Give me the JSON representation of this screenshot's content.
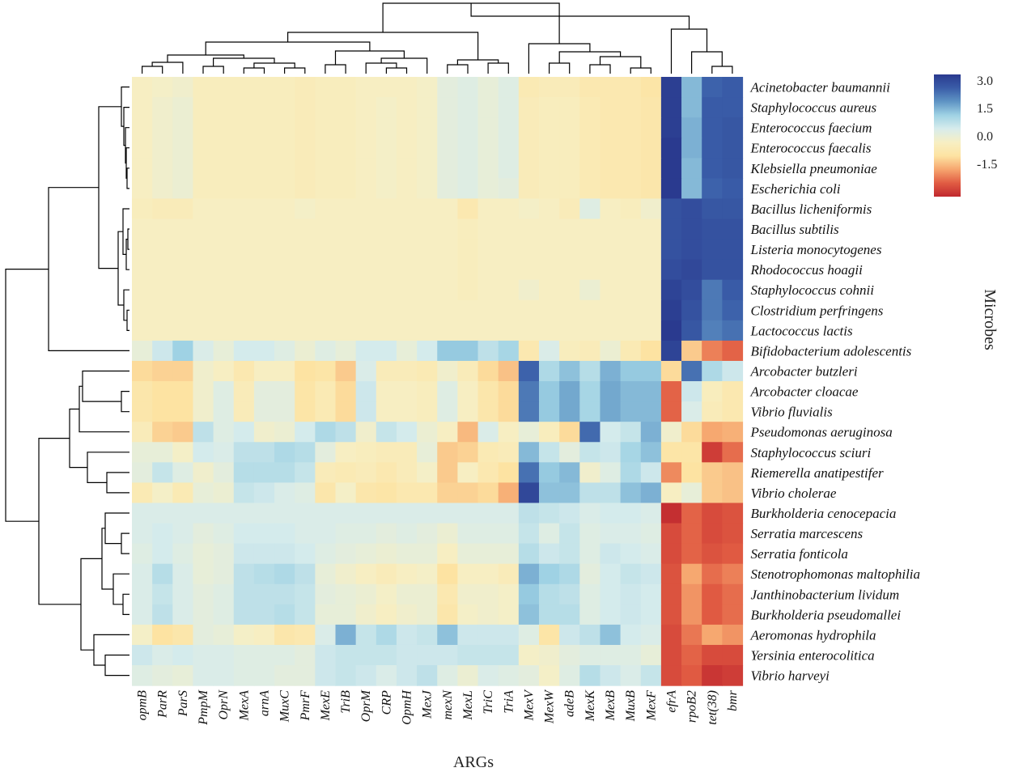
{
  "chart_data": {
    "type": "heatmap",
    "title": "",
    "xlabel": "ARGs",
    "ylabel": "Microbes",
    "columns": [
      "opmB",
      "ParR",
      "ParS",
      "PmpM",
      "OprN",
      "MexA",
      "arnA",
      "MuxC",
      "PmrF",
      "MexE",
      "TriB",
      "OprM",
      "CRP",
      "OpmH",
      "MexJ",
      "mexN",
      "MexL",
      "TriC",
      "TriA",
      "MexV",
      "MexW",
      "adeB",
      "MexK",
      "MexB",
      "MuxB",
      "MexF",
      "efrA",
      "rpoB2",
      "tet(38)",
      "bmr"
    ],
    "rows": [
      "Acinetobacter baumannii",
      "Staphylococcus aureus",
      "Enterococcus faecium",
      "Enterococcus faecalis",
      "Klebsiella pneumoniae",
      "Escherichia coli",
      "Bacillus licheniformis",
      "Bacillus subtilis",
      "Listeria monocytogenes",
      "Rhodococcus hoagii",
      "Staphylococcus cohnii",
      "Clostridium perfringens",
      "Lactococcus lactis",
      "Bifidobacterium adolescentis",
      "Arcobacter butzleri",
      "Arcobacter cloacae",
      "Vibrio fluvialis",
      "Pseudomonas aeruginosa",
      "Staphylococcus sciuri",
      "Riemerella anatipestifer",
      "Vibrio cholerae",
      "Burkholderia cenocepacia",
      "Serratia marcescens",
      "Serratia fonticola",
      "Stenotrophomonas maltophilia",
      "Janthinobacterium lividum",
      "Burkholderia pseudomallei",
      "Aeromonas hydrophila",
      "Yersinia enterocolitica",
      "Vibrio harveyi"
    ],
    "values": [
      [
        -0.4,
        -0.3,
        -0.2,
        -0.5,
        -0.5,
        -0.5,
        -0.5,
        -0.5,
        -0.6,
        -0.5,
        -0.5,
        -0.4,
        -0.4,
        -0.4,
        -0.3,
        0.1,
        0.2,
        0.0,
        0.2,
        -0.7,
        -0.6,
        -0.6,
        -0.8,
        -0.8,
        -0.8,
        -1.0,
        3.2,
        1.4,
        2.5,
        2.6
      ],
      [
        -0.4,
        -0.2,
        -0.1,
        -0.5,
        -0.5,
        -0.5,
        -0.5,
        -0.5,
        -0.6,
        -0.5,
        -0.5,
        -0.4,
        -0.3,
        -0.4,
        -0.3,
        0.1,
        0.2,
        0.0,
        0.2,
        -0.6,
        -0.5,
        -0.5,
        -0.7,
        -0.8,
        -0.8,
        -0.9,
        3.2,
        1.4,
        2.6,
        2.6
      ],
      [
        -0.4,
        -0.2,
        -0.1,
        -0.5,
        -0.5,
        -0.5,
        -0.5,
        -0.5,
        -0.6,
        -0.5,
        -0.5,
        -0.4,
        -0.3,
        -0.4,
        -0.3,
        0.1,
        0.2,
        0.0,
        0.2,
        -0.6,
        -0.5,
        -0.5,
        -0.7,
        -0.8,
        -0.8,
        -0.9,
        3.2,
        1.5,
        2.6,
        2.7
      ],
      [
        -0.4,
        -0.2,
        -0.1,
        -0.5,
        -0.5,
        -0.5,
        -0.5,
        -0.5,
        -0.6,
        -0.5,
        -0.5,
        -0.4,
        -0.3,
        -0.4,
        -0.3,
        0.1,
        0.2,
        0.0,
        0.2,
        -0.6,
        -0.5,
        -0.5,
        -0.7,
        -0.8,
        -0.8,
        -0.9,
        3.3,
        1.5,
        2.6,
        2.7
      ],
      [
        -0.4,
        -0.2,
        -0.1,
        -0.5,
        -0.5,
        -0.5,
        -0.5,
        -0.5,
        -0.6,
        -0.5,
        -0.5,
        -0.4,
        -0.3,
        -0.4,
        -0.3,
        0.1,
        0.2,
        0.0,
        0.2,
        -0.6,
        -0.5,
        -0.5,
        -0.7,
        -0.8,
        -0.8,
        -0.9,
        3.3,
        1.4,
        2.6,
        2.7
      ],
      [
        -0.4,
        -0.2,
        -0.1,
        -0.5,
        -0.5,
        -0.5,
        -0.5,
        -0.5,
        -0.6,
        -0.5,
        -0.5,
        -0.4,
        -0.3,
        -0.4,
        -0.3,
        0.1,
        0.2,
        0.0,
        0.1,
        -0.6,
        -0.5,
        -0.5,
        -0.7,
        -0.8,
        -0.8,
        -0.9,
        3.3,
        1.4,
        2.5,
        2.6
      ],
      [
        -0.5,
        -0.6,
        -0.6,
        -0.4,
        -0.4,
        -0.4,
        -0.4,
        -0.4,
        -0.3,
        -0.4,
        -0.4,
        -0.4,
        -0.4,
        -0.4,
        -0.4,
        -0.4,
        -0.8,
        -0.4,
        -0.4,
        -0.3,
        -0.4,
        -0.6,
        0.2,
        -0.4,
        -0.5,
        -0.2,
        2.8,
        2.9,
        2.7,
        2.7
      ],
      [
        -0.4,
        -0.4,
        -0.4,
        -0.4,
        -0.4,
        -0.4,
        -0.4,
        -0.4,
        -0.4,
        -0.4,
        -0.4,
        -0.4,
        -0.4,
        -0.4,
        -0.4,
        -0.4,
        -0.5,
        -0.4,
        -0.4,
        -0.4,
        -0.4,
        -0.4,
        -0.4,
        -0.4,
        -0.4,
        -0.4,
        2.8,
        2.9,
        2.8,
        2.8
      ],
      [
        -0.4,
        -0.4,
        -0.4,
        -0.4,
        -0.4,
        -0.4,
        -0.4,
        -0.4,
        -0.4,
        -0.4,
        -0.4,
        -0.4,
        -0.4,
        -0.4,
        -0.4,
        -0.4,
        -0.5,
        -0.4,
        -0.4,
        -0.4,
        -0.4,
        -0.4,
        -0.4,
        -0.4,
        -0.4,
        -0.4,
        2.8,
        2.9,
        2.8,
        2.8
      ],
      [
        -0.4,
        -0.4,
        -0.4,
        -0.4,
        -0.4,
        -0.4,
        -0.4,
        -0.4,
        -0.4,
        -0.4,
        -0.4,
        -0.4,
        -0.4,
        -0.4,
        -0.4,
        -0.4,
        -0.5,
        -0.4,
        -0.4,
        -0.4,
        -0.4,
        -0.4,
        -0.4,
        -0.4,
        -0.4,
        -0.4,
        2.9,
        3.0,
        2.8,
        2.8
      ],
      [
        -0.4,
        -0.4,
        -0.4,
        -0.4,
        -0.4,
        -0.4,
        -0.4,
        -0.4,
        -0.4,
        -0.4,
        -0.4,
        -0.4,
        -0.4,
        -0.4,
        -0.4,
        -0.4,
        -0.5,
        -0.4,
        -0.4,
        -0.2,
        -0.4,
        -0.4,
        -0.1,
        -0.4,
        -0.4,
        -0.4,
        3.1,
        2.9,
        2.2,
        2.6
      ],
      [
        -0.4,
        -0.4,
        -0.4,
        -0.4,
        -0.4,
        -0.4,
        -0.4,
        -0.4,
        -0.4,
        -0.4,
        -0.4,
        -0.4,
        -0.4,
        -0.4,
        -0.4,
        -0.4,
        -0.4,
        -0.4,
        -0.4,
        -0.4,
        -0.4,
        -0.4,
        -0.4,
        -0.4,
        -0.4,
        -0.4,
        3.2,
        2.8,
        2.2,
        2.5
      ],
      [
        -0.4,
        -0.4,
        -0.4,
        -0.4,
        -0.4,
        -0.4,
        -0.4,
        -0.4,
        -0.4,
        -0.4,
        -0.4,
        -0.4,
        -0.4,
        -0.4,
        -0.4,
        -0.4,
        -0.4,
        -0.4,
        -0.4,
        -0.4,
        -0.4,
        -0.4,
        -0.4,
        -0.4,
        -0.4,
        -0.4,
        3.3,
        2.7,
        2.1,
        2.3
      ],
      [
        0.0,
        0.5,
        1.1,
        0.3,
        0.0,
        0.4,
        0.4,
        0.2,
        -0.1,
        0.2,
        0.0,
        0.4,
        0.4,
        0.0,
        0.4,
        1.2,
        1.2,
        0.7,
        1.0,
        -0.8,
        0.3,
        -0.5,
        -0.6,
        -0.1,
        -0.7,
        -1.1,
        3.1,
        -1.4,
        -2.2,
        -2.5
      ],
      [
        -1.2,
        -1.3,
        -1.3,
        -0.2,
        -0.4,
        -0.8,
        -0.4,
        -0.4,
        -1.1,
        -1.0,
        -1.4,
        0.3,
        -0.6,
        -0.6,
        -0.7,
        -0.2,
        -0.6,
        -1.2,
        -1.5,
        2.5,
        0.9,
        1.3,
        0.8,
        1.5,
        1.2,
        1.2,
        -1.2,
        2.3,
        0.9,
        0.5
      ],
      [
        -0.9,
        -1.1,
        -1.1,
        -0.2,
        0.2,
        -0.6,
        0.1,
        0.1,
        -1.0,
        -0.7,
        -1.2,
        0.5,
        -0.4,
        -0.4,
        -0.5,
        0.2,
        -0.4,
        -0.9,
        -1.2,
        2.2,
        1.2,
        1.6,
        1.0,
        1.6,
        1.4,
        1.4,
        -2.5,
        0.5,
        -0.5,
        -0.8
      ],
      [
        -0.9,
        -1.1,
        -1.1,
        -0.2,
        0.2,
        -0.6,
        0.1,
        0.1,
        -1.0,
        -0.7,
        -1.2,
        0.5,
        -0.4,
        -0.4,
        -0.5,
        0.2,
        -0.4,
        -0.9,
        -1.2,
        2.2,
        1.2,
        1.6,
        1.0,
        1.6,
        1.4,
        1.4,
        -2.5,
        0.3,
        -0.6,
        -0.8
      ],
      [
        -0.6,
        -1.3,
        -1.4,
        0.7,
        0.2,
        0.4,
        -0.2,
        -0.1,
        0.4,
        0.9,
        0.7,
        -0.2,
        0.6,
        0.4,
        -0.1,
        -0.4,
        -1.6,
        0.3,
        -0.4,
        0.0,
        -0.5,
        -1.2,
        2.4,
        0.4,
        0.6,
        1.5,
        -0.2,
        -1.2,
        -1.8,
        -1.7
      ],
      [
        0.0,
        0.0,
        -0.3,
        0.4,
        0.3,
        0.7,
        0.7,
        0.9,
        0.8,
        0.1,
        -0.4,
        -0.5,
        -0.6,
        -0.6,
        0.0,
        -1.4,
        -1.3,
        -0.7,
        -0.6,
        1.4,
        0.6,
        0.1,
        0.6,
        0.5,
        1.0,
        1.3,
        -1.0,
        -1.0,
        -3.0,
        -2.4
      ],
      [
        0.1,
        0.6,
        0.2,
        -0.2,
        0.1,
        0.8,
        0.8,
        0.8,
        0.6,
        -0.6,
        -0.7,
        -0.6,
        -0.8,
        -0.6,
        -0.3,
        -1.4,
        -0.4,
        -0.8,
        -1.1,
        2.3,
        1.2,
        1.4,
        -0.2,
        0.2,
        0.9,
        0.5,
        -2.1,
        -1.1,
        -1.4,
        -1.5
      ],
      [
        -0.7,
        -0.3,
        -0.7,
        0.0,
        -0.1,
        0.6,
        0.5,
        0.3,
        0.2,
        -0.9,
        -0.3,
        -0.9,
        -1.0,
        -0.8,
        -0.8,
        -1.3,
        -1.3,
        -1.2,
        -1.7,
        3.0,
        1.3,
        1.3,
        0.7,
        0.7,
        1.3,
        1.5,
        -0.4,
        0.0,
        -1.4,
        -1.5
      ],
      [
        0.3,
        0.3,
        0.3,
        0.3,
        0.3,
        0.3,
        0.3,
        0.3,
        0.3,
        0.3,
        0.3,
        0.3,
        0.3,
        0.3,
        0.3,
        0.3,
        0.3,
        0.3,
        0.3,
        0.7,
        0.6,
        0.5,
        0.3,
        0.4,
        0.4,
        0.3,
        -3.2,
        -2.5,
        -2.8,
        -2.7
      ],
      [
        0.3,
        0.4,
        0.3,
        0.1,
        0.2,
        0.4,
        0.4,
        0.4,
        0.3,
        0.3,
        0.2,
        0.2,
        0.1,
        0.2,
        0.1,
        -0.1,
        0.2,
        0.2,
        0.2,
        0.6,
        0.2,
        0.6,
        0.2,
        0.3,
        0.3,
        0.2,
        -2.8,
        -2.5,
        -2.8,
        -2.7
      ],
      [
        0.2,
        0.4,
        0.2,
        0.0,
        0.1,
        0.5,
        0.5,
        0.5,
        0.4,
        0.2,
        0.1,
        0.0,
        -0.1,
        0.0,
        0.0,
        -0.4,
        0.0,
        0.0,
        0.0,
        0.8,
        0.5,
        0.6,
        0.2,
        0.5,
        0.4,
        0.3,
        -2.8,
        -2.5,
        -2.7,
        -2.6
      ],
      [
        0.3,
        0.8,
        0.3,
        0.0,
        0.1,
        0.7,
        0.8,
        0.9,
        0.7,
        0.0,
        -0.2,
        -0.4,
        -0.6,
        -0.4,
        -0.3,
        -1.1,
        -0.4,
        -0.4,
        -0.6,
        1.5,
        1.1,
        0.9,
        0.1,
        0.4,
        0.6,
        0.5,
        -2.7,
        -1.8,
        -2.4,
        -2.2
      ],
      [
        0.3,
        0.6,
        0.3,
        0.1,
        0.2,
        0.7,
        0.7,
        0.7,
        0.6,
        0.1,
        0.0,
        -0.1,
        -0.3,
        -0.1,
        -0.1,
        -0.8,
        -0.2,
        -0.2,
        -0.3,
        1.2,
        0.8,
        0.7,
        0.2,
        0.4,
        0.5,
        0.4,
        -2.7,
        -2.0,
        -2.6,
        -2.4
      ],
      [
        0.3,
        0.7,
        0.3,
        0.1,
        0.2,
        0.7,
        0.7,
        0.8,
        0.6,
        0.0,
        0.0,
        -0.2,
        -0.4,
        -0.2,
        -0.1,
        -0.9,
        -0.3,
        -0.2,
        -0.3,
        1.3,
        0.8,
        0.8,
        0.2,
        0.4,
        0.5,
        0.4,
        -2.7,
        -2.0,
        -2.6,
        -2.4
      ],
      [
        -0.3,
        -1.1,
        -0.9,
        0.1,
        0.0,
        -0.3,
        -0.4,
        -0.9,
        -0.8,
        0.3,
        1.5,
        0.6,
        0.9,
        0.5,
        0.6,
        1.3,
        0.5,
        0.5,
        0.5,
        0.2,
        -1.0,
        0.5,
        0.7,
        1.3,
        0.4,
        0.3,
        -2.8,
        -2.3,
        -1.8,
        -2.0
      ],
      [
        0.5,
        0.3,
        0.4,
        0.3,
        0.3,
        0.2,
        0.2,
        0.2,
        0.1,
        0.5,
        0.6,
        0.6,
        0.6,
        0.5,
        0.5,
        0.5,
        0.6,
        0.6,
        0.6,
        -0.3,
        -0.2,
        0.1,
        0.2,
        0.2,
        0.2,
        0.0,
        -2.8,
        -2.5,
        -2.8,
        -2.8
      ],
      [
        0.2,
        0.1,
        0.0,
        0.3,
        0.3,
        0.2,
        0.2,
        0.1,
        0.1,
        0.5,
        0.6,
        0.5,
        0.3,
        0.5,
        0.7,
        0.2,
        -0.1,
        0.3,
        0.2,
        0.1,
        -0.3,
        0.2,
        0.8,
        0.5,
        0.3,
        0.6,
        -2.8,
        -2.6,
        -3.1,
        -3.0
      ]
    ],
    "colorbar": {
      "ticks": [
        "3.0",
        "1.5",
        "0.0",
        "-1.5"
      ],
      "tick_values": [
        3.0,
        1.5,
        0.0,
        -1.5
      ],
      "min": -3.3,
      "max": 3.3,
      "colors": [
        "#c0282e",
        "#e15c43",
        "#f6a56e",
        "#fde3a2",
        "#f7efc3",
        "#d7ecec",
        "#9fd2e4",
        "#5f94c4",
        "#3a5da8",
        "#2a3a8f"
      ]
    },
    "row_dendrogram": true,
    "column_dendrogram": true
  }
}
